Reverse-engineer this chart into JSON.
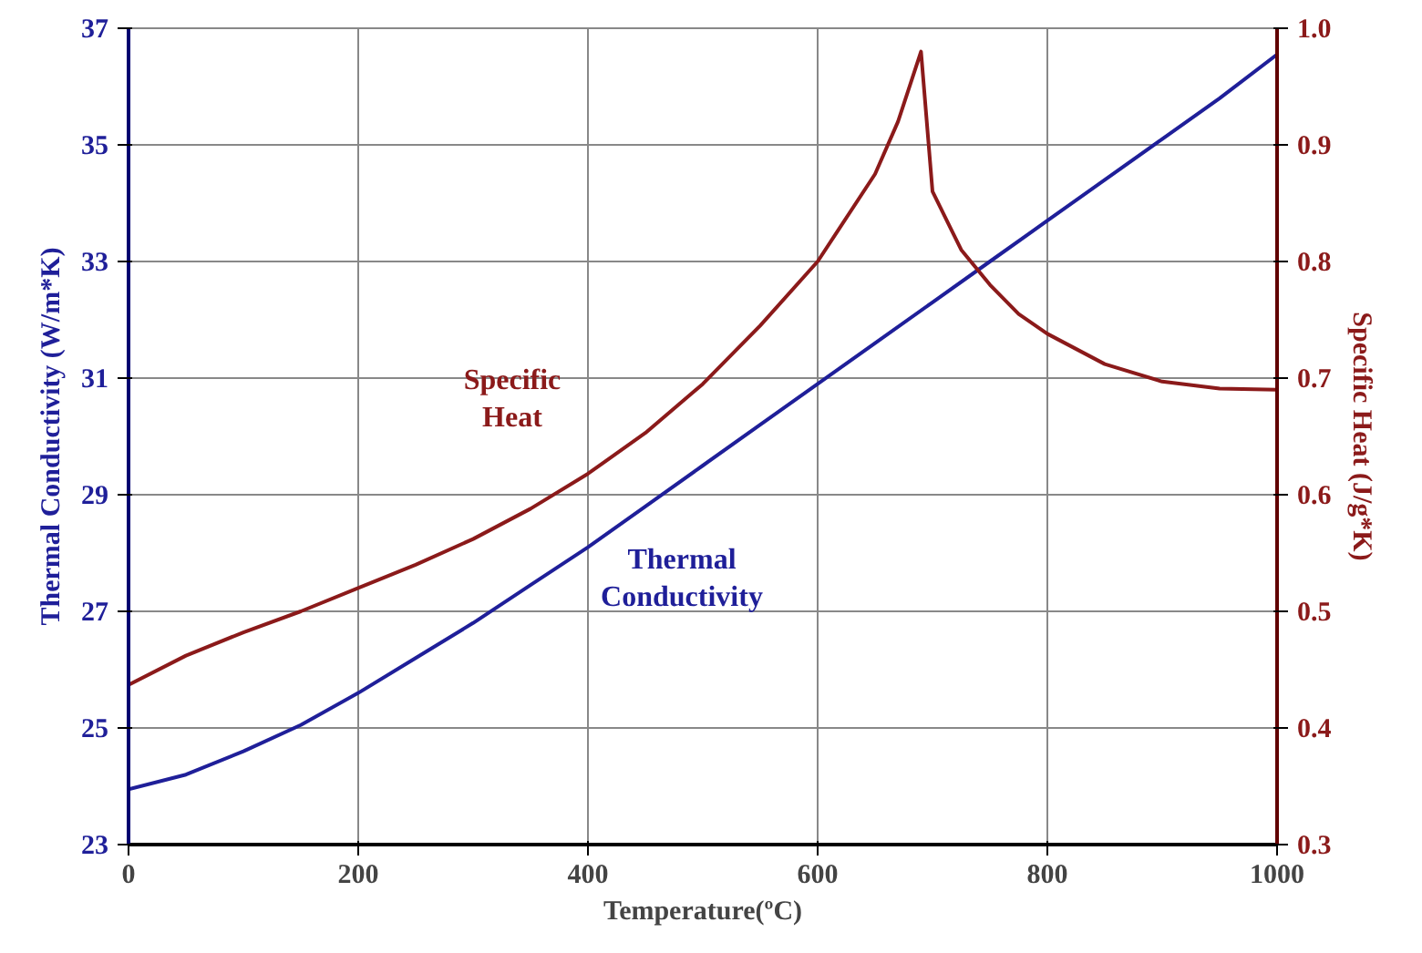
{
  "chart_data": {
    "type": "line",
    "xlabel": "Temperature(ºC)",
    "ylabel": "Thermal Conductivity (W/m*K)",
    "y2label": "Specific Heat (J/g*K)",
    "xlim": [
      0,
      1000
    ],
    "xticks": [
      0,
      200,
      400,
      600,
      800,
      1000
    ],
    "ylim": [
      23,
      37
    ],
    "yticks": [
      23,
      25,
      27,
      29,
      31,
      33,
      35,
      37
    ],
    "y2lim": [
      0.3,
      1.0
    ],
    "y2ticks": [
      {
        "value": 0.3,
        "label": "0.3"
      },
      {
        "value": 0.4,
        "label": "0.4"
      },
      {
        "value": 0.5,
        "label": "0.5"
      },
      {
        "value": 0.6,
        "label": "0.6"
      },
      {
        "value": 0.7,
        "label": "0.7"
      },
      {
        "value": 0.8,
        "label": "0.8"
      },
      {
        "value": 0.9,
        "label": "0.9"
      },
      {
        "value": 1.0,
        "label": "1.0"
      }
    ],
    "grid": true,
    "marker": "none",
    "line_style": "solid",
    "series": [
      {
        "name": "Thermal Conductivity",
        "color": "#1f1f99",
        "x": [
          0,
          50,
          100,
          150,
          200,
          250,
          300,
          350,
          400,
          450,
          500,
          550,
          600,
          650,
          700,
          750,
          800,
          850,
          900,
          950,
          1000
        ],
        "values": [
          23.95,
          24.2,
          24.6,
          25.05,
          25.6,
          26.2,
          26.8,
          27.45,
          28.1,
          28.8,
          29.5,
          30.2,
          30.9,
          31.6,
          32.3,
          33.0,
          33.7,
          34.4,
          35.1,
          35.8,
          36.55
        ]
      },
      {
        "name": "Specific Heat",
        "color": "#8b1a1a",
        "axis": "y2",
        "x": [
          0,
          50,
          100,
          150,
          200,
          250,
          300,
          350,
          400,
          450,
          500,
          550,
          600,
          650,
          670,
          690,
          700,
          725,
          750,
          775,
          800,
          850,
          900,
          950,
          1000
        ],
        "values": [
          0.437,
          0.462,
          0.482,
          0.5,
          0.52,
          0.54,
          0.562,
          0.588,
          0.618,
          0.653,
          0.695,
          0.745,
          0.8,
          0.875,
          0.92,
          0.98,
          0.86,
          0.81,
          0.78,
          0.755,
          0.738,
          0.712,
          0.697,
          0.691,
          0.69
        ]
      }
    ]
  }
}
